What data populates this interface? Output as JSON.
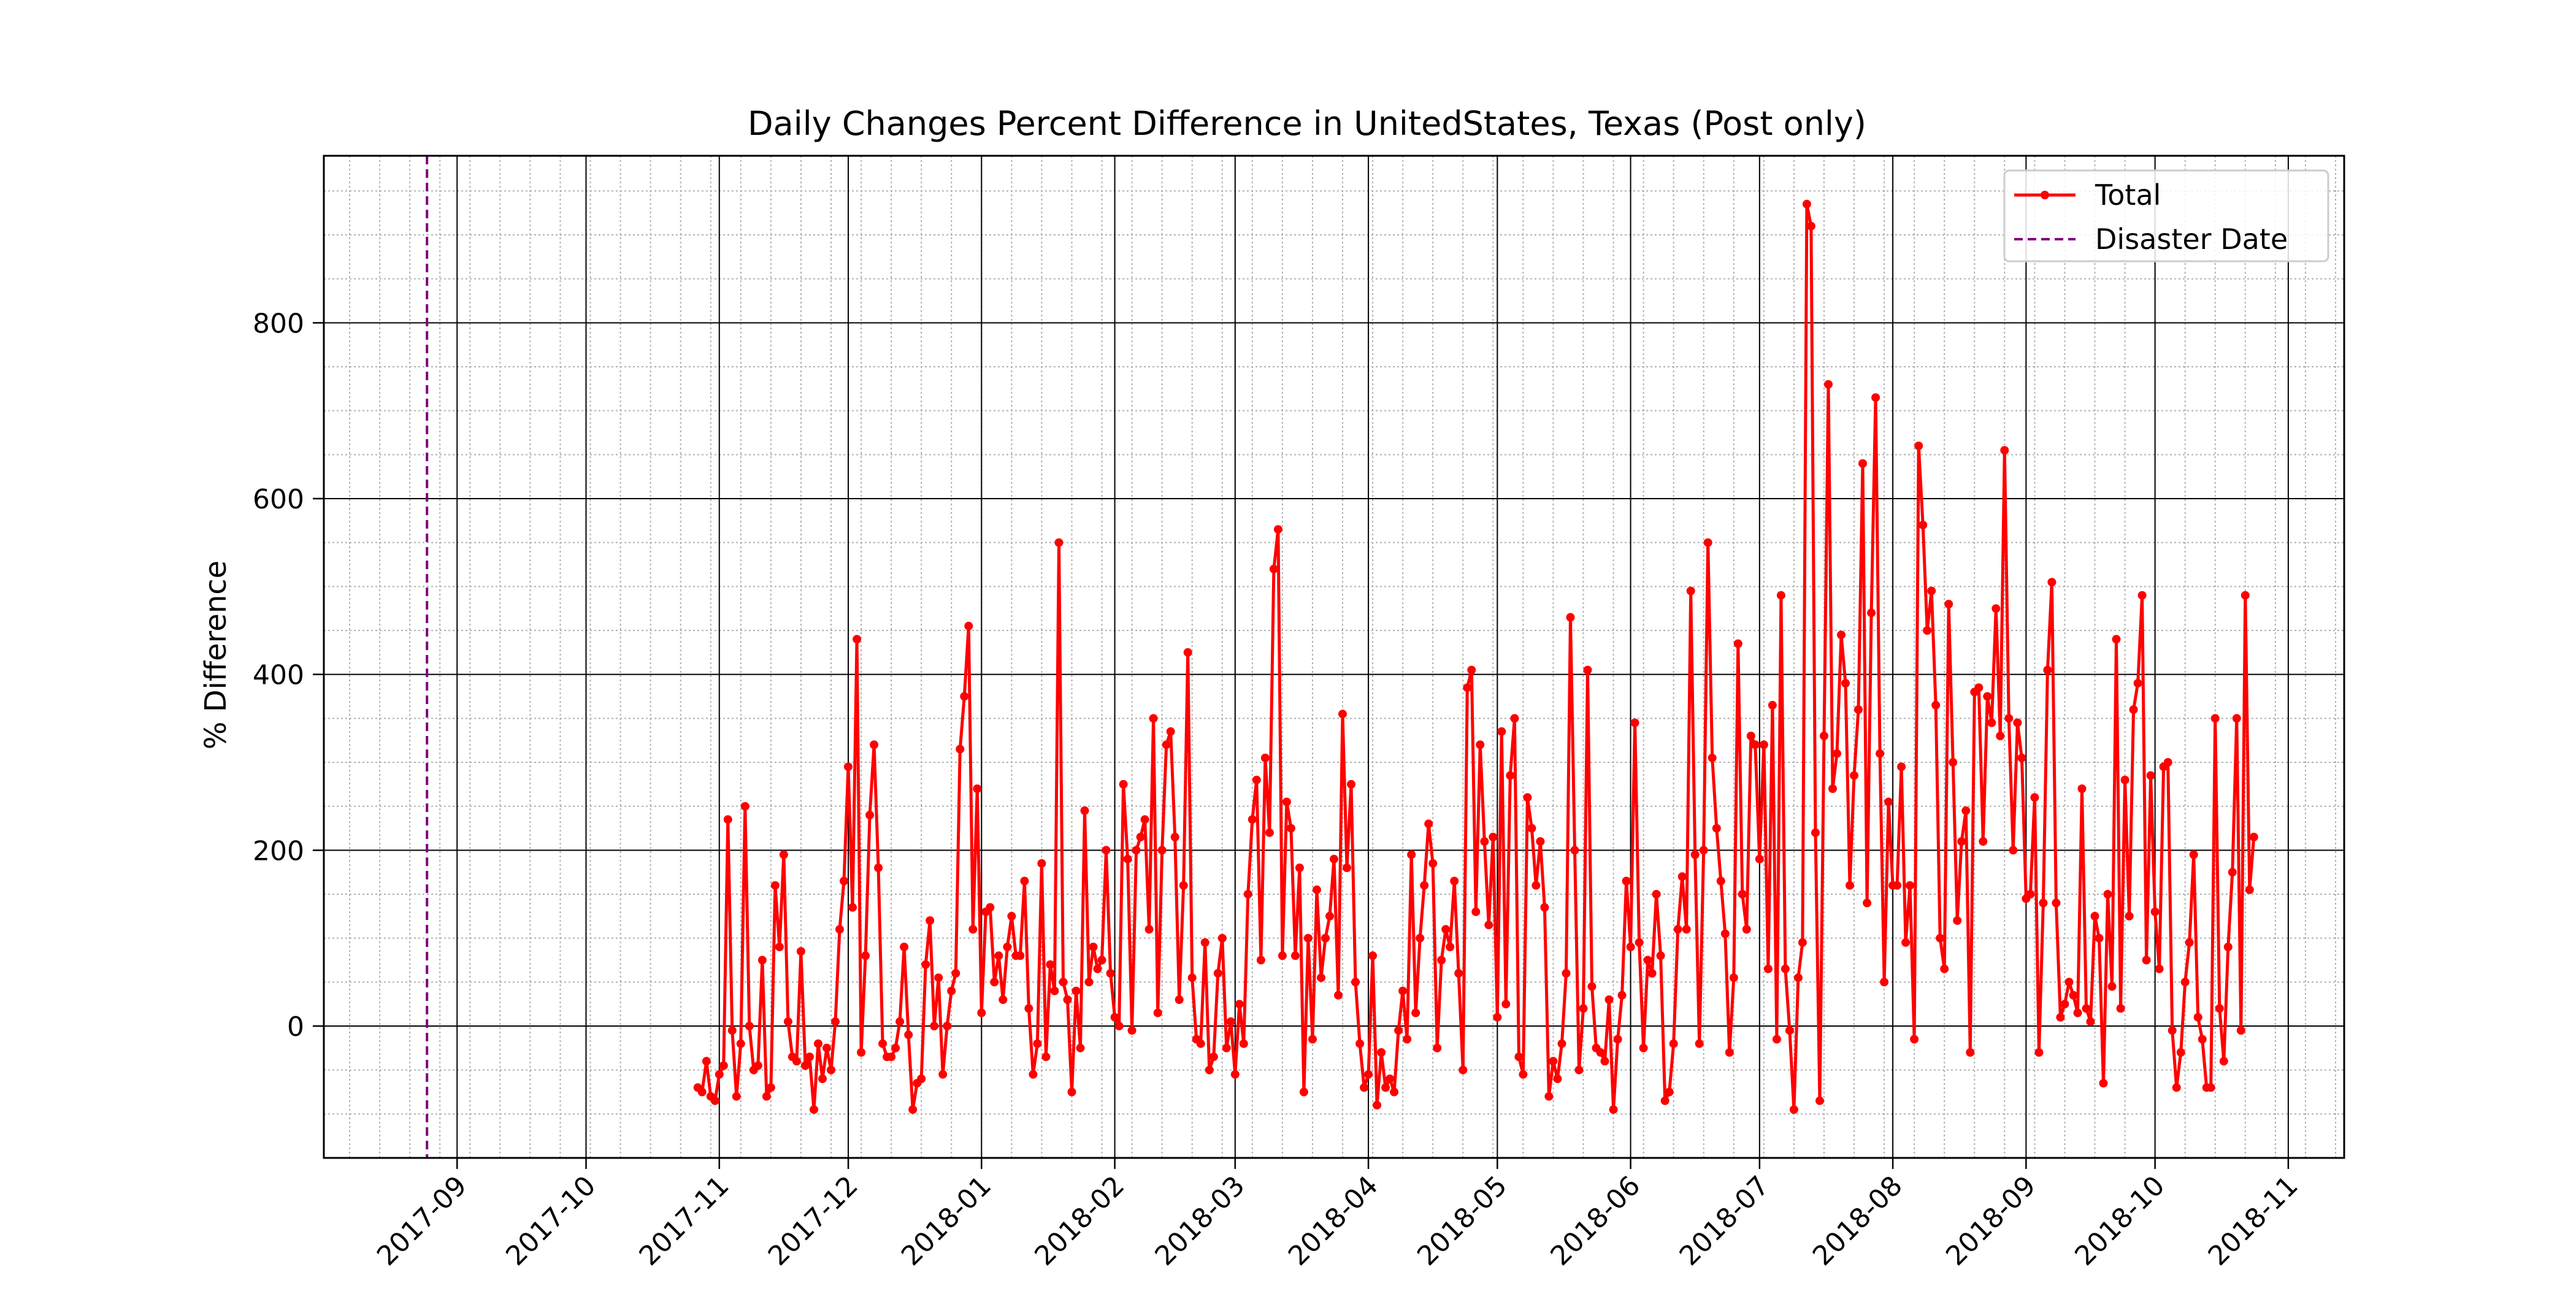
{
  "chart_data": {
    "type": "line",
    "title": "Daily Changes Percent Difference in UnitedStates, Texas (Post only)",
    "xlabel": "",
    "ylabel": "% Difference",
    "x_axis_type": "date",
    "xlim": [
      "2017-08-01",
      "2018-11-14"
    ],
    "ylim": [
      -150,
      990
    ],
    "y_ticks": [
      0,
      200,
      400,
      600,
      800
    ],
    "x_ticks": [
      "2017-09",
      "2017-10",
      "2017-11",
      "2017-12",
      "2018-01",
      "2018-02",
      "2018-03",
      "2018-04",
      "2018-05",
      "2018-06",
      "2018-07",
      "2018-08",
      "2018-09",
      "2018-10",
      "2018-11"
    ],
    "grid": true,
    "minor_grid": true,
    "legend_position": "top-right",
    "legend": [
      "Total",
      "Disaster Date"
    ],
    "disaster_date": "2017-08-25",
    "colors": {
      "series": "#ff0000",
      "disaster": "#800080",
      "major_grid": "#000000",
      "minor_grid": "#b0b0b0"
    },
    "series": [
      {
        "name": "Total",
        "start": "2017-10-27",
        "values": [
          -70,
          -75,
          -40,
          -80,
          -85,
          -55,
          -45,
          235,
          -5,
          -80,
          -20,
          250,
          0,
          -50,
          -45,
          75,
          -80,
          -70,
          160,
          90,
          195,
          5,
          -35,
          -40,
          85,
          -45,
          -35,
          -95,
          -20,
          -60,
          -25,
          -50,
          5,
          110,
          165,
          295,
          135,
          440,
          -30,
          80,
          240,
          320,
          180,
          -20,
          -35,
          -35,
          -25,
          5,
          90,
          -10,
          -95,
          -65,
          -60,
          70,
          120,
          0,
          55,
          -55,
          0,
          40,
          60,
          315,
          375,
          455,
          110,
          270,
          15,
          130,
          135,
          50,
          80,
          30,
          90,
          125,
          80,
          80,
          165,
          20,
          -55,
          -20,
          185,
          -35,
          70,
          40,
          550,
          50,
          30,
          -75,
          40,
          -25,
          245,
          50,
          90,
          65,
          75,
          200,
          60,
          10,
          0,
          275,
          190,
          -5,
          200,
          215,
          235,
          110,
          350,
          15,
          200,
          320,
          335,
          215,
          30,
          160,
          425,
          55,
          -15,
          -20,
          95,
          -50,
          -35,
          60,
          100,
          -25,
          5,
          -55,
          25,
          -20,
          150,
          235,
          280,
          75,
          305,
          220,
          520,
          565,
          80,
          255,
          225,
          80,
          180,
          -75,
          100,
          -15,
          155,
          55,
          100,
          125,
          190,
          35,
          355,
          180,
          275,
          50,
          -20,
          -70,
          -55,
          80,
          -90,
          -30,
          -70,
          -60,
          -75,
          -5,
          40,
          -15,
          195,
          15,
          100,
          160,
          230,
          185,
          -25,
          75,
          110,
          90,
          165,
          60,
          -50,
          385,
          405,
          130,
          320,
          210,
          115,
          215,
          10,
          335,
          25,
          285,
          350,
          -35,
          -55,
          260,
          225,
          160,
          210,
          135,
          -80,
          -40,
          -60,
          -20,
          60,
          465,
          200,
          -50,
          20,
          405,
          45,
          -25,
          -30,
          -40,
          30,
          -95,
          -15,
          35,
          165,
          90,
          345,
          95,
          -25,
          75,
          60,
          150,
          80,
          -85,
          -75,
          -20,
          110,
          170,
          110,
          495,
          195,
          -20,
          200,
          550,
          305,
          225,
          165,
          105,
          -30,
          55,
          435,
          150,
          110,
          330,
          320,
          190,
          320,
          65,
          365,
          -15,
          490,
          65,
          -5,
          -95,
          55,
          95,
          935,
          910,
          220,
          -85,
          330,
          730,
          270,
          310,
          445,
          390,
          160,
          285,
          360,
          640,
          140,
          470,
          715,
          310,
          50,
          255,
          160,
          160,
          295,
          95,
          160,
          -15,
          660,
          570,
          450,
          495,
          365,
          100,
          65,
          480,
          300,
          120,
          210,
          245,
          -30,
          380,
          385,
          210,
          375,
          345,
          475,
          330,
          655,
          350,
          200,
          345,
          305,
          145,
          150,
          260,
          -30,
          140,
          405,
          505,
          140,
          10,
          25,
          50,
          35,
          15,
          270,
          20,
          5,
          125,
          100,
          -65,
          150,
          45,
          440,
          20,
          280,
          125,
          360,
          390,
          490,
          75,
          285,
          130,
          65,
          295,
          300,
          -5,
          -70,
          -30,
          50,
          95,
          195,
          10,
          -15,
          -70,
          -70,
          350,
          20,
          -40,
          90,
          175,
          350,
          -5,
          490,
          155,
          215
        ]
      }
    ]
  }
}
